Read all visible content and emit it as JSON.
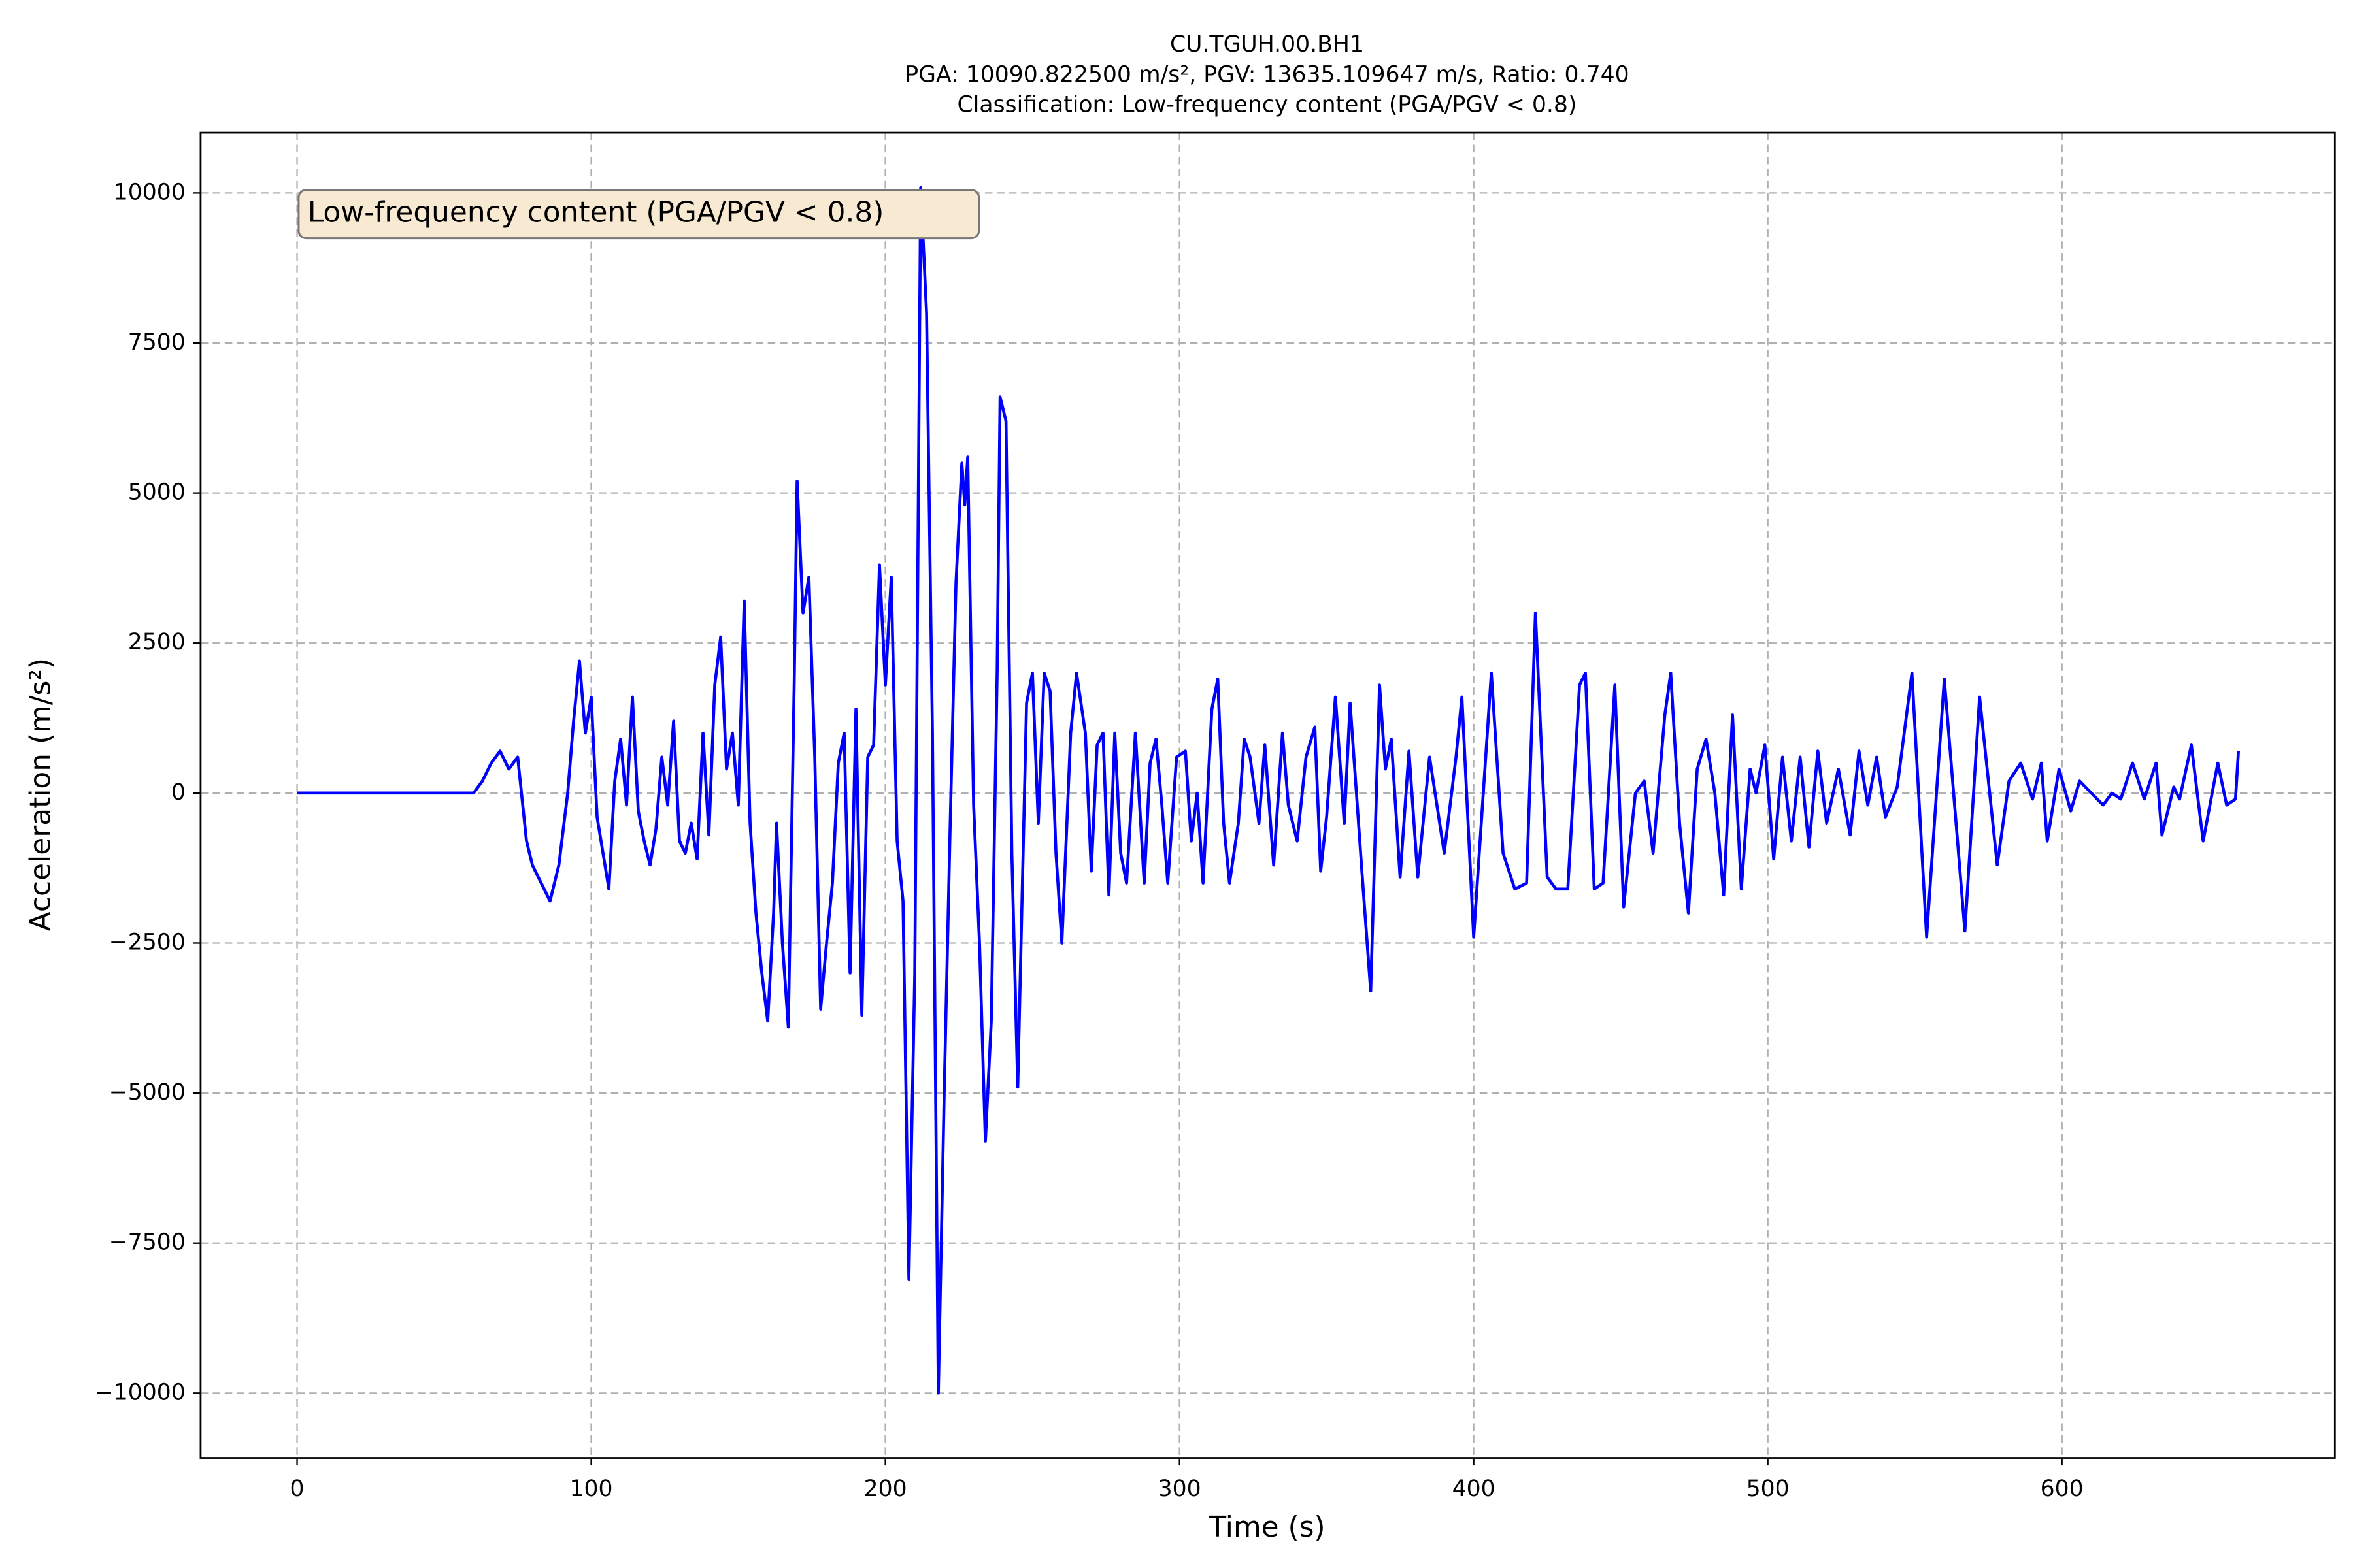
{
  "chart_data": {
    "type": "line",
    "title": "CU.TGUH.00.BH1",
    "subtitle": "PGA: 10090.822500 m/s², PGV: 13635.109647 m/s, Ratio: 0.740",
    "classification": "Classification: Low-frequency content (PGA/PGV < 0.8)",
    "annotation": "Low-frequency content (PGA/PGV < 0.8)",
    "x_label": "Time (s)",
    "y_label": "Acceleration (m/s²)",
    "color": "#0000ff",
    "grid": true,
    "xlim": [
      -32.8,
      692.8
    ],
    "ylim": [
      -11080,
      11005
    ],
    "xticks": [
      0,
      100,
      200,
      300,
      400,
      500,
      600
    ],
    "yticks": [
      {
        "value": -10000,
        "label": "−10000"
      },
      {
        "value": -7500,
        "label": "−7500"
      },
      {
        "value": -5000,
        "label": "−5000"
      },
      {
        "value": -2500,
        "label": "−2500"
      },
      0,
      2500,
      5000,
      7500,
      10000
    ],
    "x": [
      0,
      60,
      63,
      66,
      69,
      72,
      75,
      78,
      80,
      83,
      86,
      89,
      92,
      94,
      96,
      98,
      100,
      102,
      104,
      106,
      108,
      110,
      112,
      114,
      116,
      118,
      120,
      122,
      124,
      126,
      128,
      130,
      132,
      134,
      136,
      138,
      140,
      142,
      144,
      146,
      148,
      150,
      152,
      154,
      156,
      158,
      160,
      162,
      163,
      165,
      167,
      169,
      170,
      172,
      174,
      176,
      178,
      180,
      182,
      184,
      186,
      188,
      190,
      192,
      194,
      196,
      198,
      200,
      202,
      204,
      206,
      208,
      210,
      212,
      214,
      216,
      218,
      220,
      222,
      224,
      226,
      227,
      228,
      230,
      232,
      234,
      236,
      238,
      239,
      241,
      243,
      245,
      248,
      250,
      252,
      254,
      256,
      258,
      260,
      263,
      265,
      268,
      270,
      272,
      274,
      276,
      278,
      280,
      282,
      285,
      288,
      290,
      292,
      294,
      296,
      299,
      302,
      304,
      306,
      308,
      311,
      313,
      315,
      317,
      320,
      322,
      324,
      327,
      329,
      332,
      335,
      337,
      340,
      343,
      346,
      348,
      350,
      353,
      356,
      358,
      362,
      365,
      368,
      370,
      372,
      375,
      378,
      381,
      385,
      390,
      394,
      396,
      400,
      406,
      410,
      414,
      418,
      421,
      425,
      428,
      432,
      436,
      438,
      441,
      444,
      448,
      451,
      455,
      458,
      461,
      465,
      467,
      470,
      473,
      476,
      479,
      482,
      485,
      488,
      491,
      494,
      496,
      499,
      502,
      505,
      508,
      511,
      514,
      517,
      520,
      524,
      528,
      531,
      534,
      537,
      540,
      544,
      549,
      554,
      560,
      567,
      572,
      578,
      582,
      586,
      590,
      593,
      595,
      599,
      603,
      606,
      610,
      614,
      617,
      620,
      624,
      628,
      632,
      634,
      638,
      640,
      644,
      648,
      653,
      656,
      659,
      660
    ],
    "values": [
      0,
      0,
      200,
      500,
      700,
      400,
      600,
      -800,
      -1200,
      -1500,
      -1800,
      -1200,
      0,
      1200,
      2200,
      1000,
      1600,
      -400,
      -1000,
      -1600,
      200,
      900,
      -200,
      1600,
      -300,
      -800,
      -1200,
      -600,
      600,
      -200,
      1200,
      -800,
      -1000,
      -500,
      -1100,
      1000,
      -700,
      1800,
      2600,
      400,
      1000,
      -200,
      3200,
      -500,
      -2000,
      -3000,
      -3800,
      -2000,
      -500,
      -2500,
      -3900,
      1800,
      5200,
      3000,
      3600,
      600,
      -3600,
      -2500,
      -1500,
      500,
      1000,
      -3000,
      1400,
      -3700,
      600,
      800,
      3800,
      1800,
      3600,
      -800,
      -1800,
      -8100,
      -3000,
      10090,
      8000,
      1000,
      -10000,
      -5000,
      -600,
      3500,
      5500,
      4800,
      5600,
      -200,
      -2500,
      -5800,
      -3800,
      2000,
      6600,
      6200,
      -1000,
      -4900,
      1500,
      2000,
      -500,
      2000,
      1700,
      -1000,
      -2500,
      1000,
      2000,
      1000,
      -1300,
      800,
      1000,
      -1700,
      1000,
      -1000,
      -1500,
      1000,
      -1500,
      500,
      900,
      -200,
      -1500,
      600,
      700,
      -800,
      0,
      -1500,
      1400,
      1900,
      -500,
      -1500,
      -500,
      900,
      600,
      -500,
      800,
      -1200,
      1000,
      -200,
      -800,
      600,
      1100,
      -1300,
      -400,
      1600,
      -500,
      1500,
      -1300,
      -3300,
      1800,
      400,
      900,
      -1400,
      700,
      -1400,
      600,
      -1000,
      600,
      1600,
      -2400,
      2000,
      -1000,
      -1600,
      -1500,
      3000,
      -1400,
      -1600,
      -1600,
      1800,
      2000,
      -1600,
      -1500,
      1800,
      -1900,
      0,
      200,
      -1000,
      1300,
      2000,
      -500,
      -2000,
      400,
      900,
      0,
      -1700,
      1300,
      -1600,
      400,
      0,
      800,
      -1100,
      600,
      -800,
      600,
      -900,
      700,
      -500,
      400,
      -700,
      700,
      -200,
      600,
      -400,
      100,
      2000,
      -2400,
      1900,
      -2300,
      1600,
      -1200,
      200,
      500,
      -100,
      500,
      -800,
      400,
      -300,
      200,
      0,
      -200,
      0,
      -100,
      500,
      -100,
      500,
      -700,
      100,
      -100,
      800,
      -800,
      500,
      -200,
      -100,
      700
    ]
  }
}
